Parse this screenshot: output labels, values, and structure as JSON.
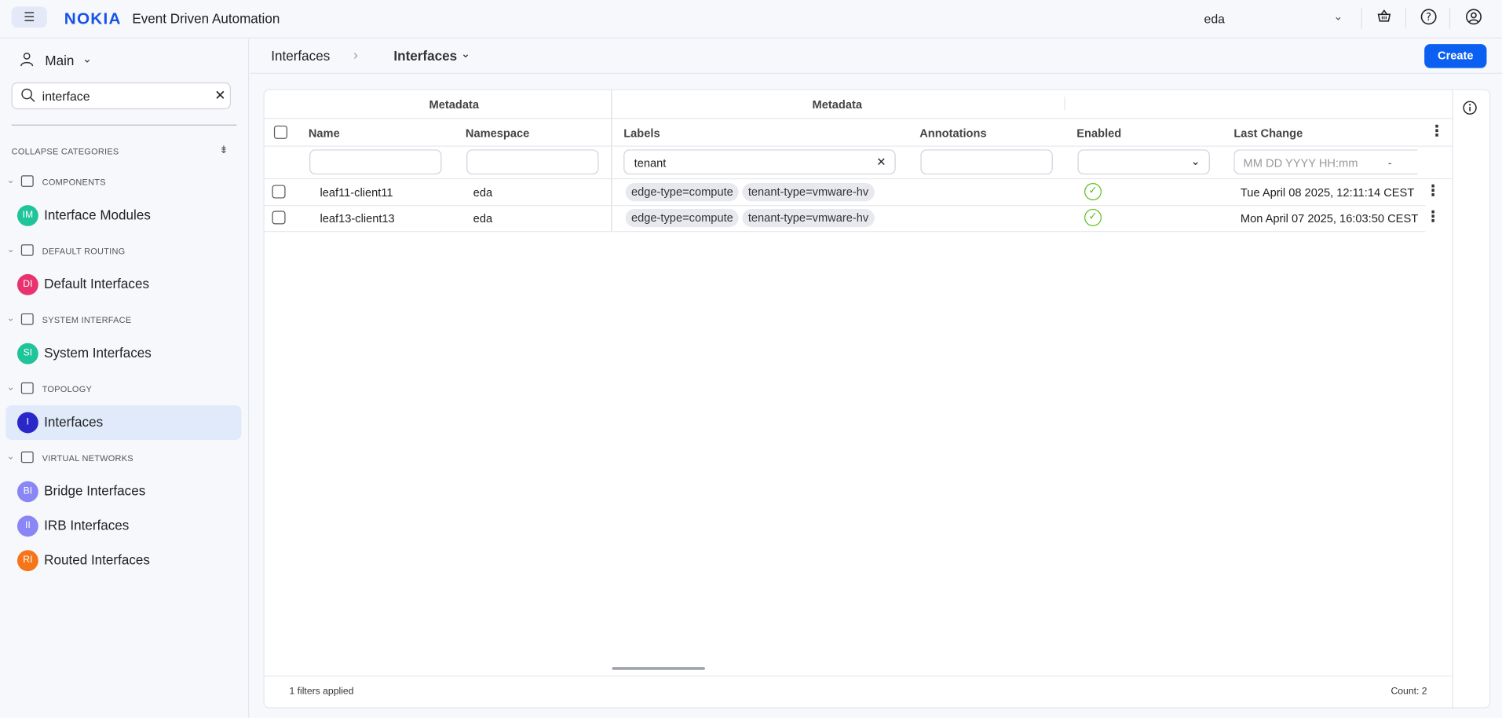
{
  "header": {
    "menu_icon": "hamburger-icon",
    "logo": "NOKIA",
    "title": "Event Driven Automation",
    "namespace": "eda",
    "icons": [
      "basket-icon",
      "help-icon",
      "user-circle-icon"
    ]
  },
  "sidebar": {
    "workspace": "Main",
    "search_value": "interface",
    "collapse_label": "COLLAPSE CATEGORIES",
    "categories": [
      {
        "label": "COMPONENTS",
        "icon": "components-icon",
        "items": [
          {
            "abbr": "IM",
            "label": "Interface Modules",
            "color": "#1fc49a"
          }
        ]
      },
      {
        "label": "DEFAULT ROUTING",
        "icon": "routing-icon",
        "items": [
          {
            "abbr": "DI",
            "label": "Default Interfaces",
            "color": "#e8336e"
          }
        ]
      },
      {
        "label": "SYSTEM INTERFACE",
        "icon": "system-interface-icon",
        "items": [
          {
            "abbr": "SI",
            "label": "System Interfaces",
            "color": "#1fc49a"
          }
        ]
      },
      {
        "label": "TOPOLOGY",
        "icon": "topology-icon",
        "items": [
          {
            "abbr": "I",
            "label": "Interfaces",
            "color": "#2a27c9",
            "active": true
          }
        ]
      },
      {
        "label": "VIRTUAL NETWORKS",
        "icon": "virtual-networks-icon",
        "items": [
          {
            "abbr": "BI",
            "label": "Bridge Interfaces",
            "color": "#8a86f5"
          },
          {
            "abbr": "II",
            "label": "IRB Interfaces",
            "color": "#8a86f5"
          },
          {
            "abbr": "RI",
            "label": "Routed Interfaces",
            "color": "#f5761a"
          }
        ]
      }
    ]
  },
  "breadcrumb": {
    "parent": "Interfaces",
    "current": "Interfaces"
  },
  "create_label": "Create",
  "table": {
    "group1": "Metadata",
    "group2": "Metadata",
    "columns": [
      "Name",
      "Namespace",
      "Labels",
      "Annotations",
      "Enabled",
      "Last Change"
    ],
    "filters": {
      "labels": "tenant",
      "date_placeholder": "MM DD YYYY HH:mm",
      "date_sep": "-"
    },
    "rows": [
      {
        "name": "leaf11-client11",
        "namespace": "eda",
        "labels": [
          "edge-type=compute",
          "tenant-type=vmware-hv"
        ],
        "enabled": true,
        "last_change": "Tue April 08 2025, 12:11:14 CEST"
      },
      {
        "name": "leaf13-client13",
        "namespace": "eda",
        "labels": [
          "edge-type=compute",
          "tenant-type=vmware-hv"
        ],
        "enabled": true,
        "last_change": "Mon April 07 2025, 16:03:50 CEST"
      }
    ],
    "footer_filters": "1 filters applied",
    "count": "Count: 2"
  }
}
